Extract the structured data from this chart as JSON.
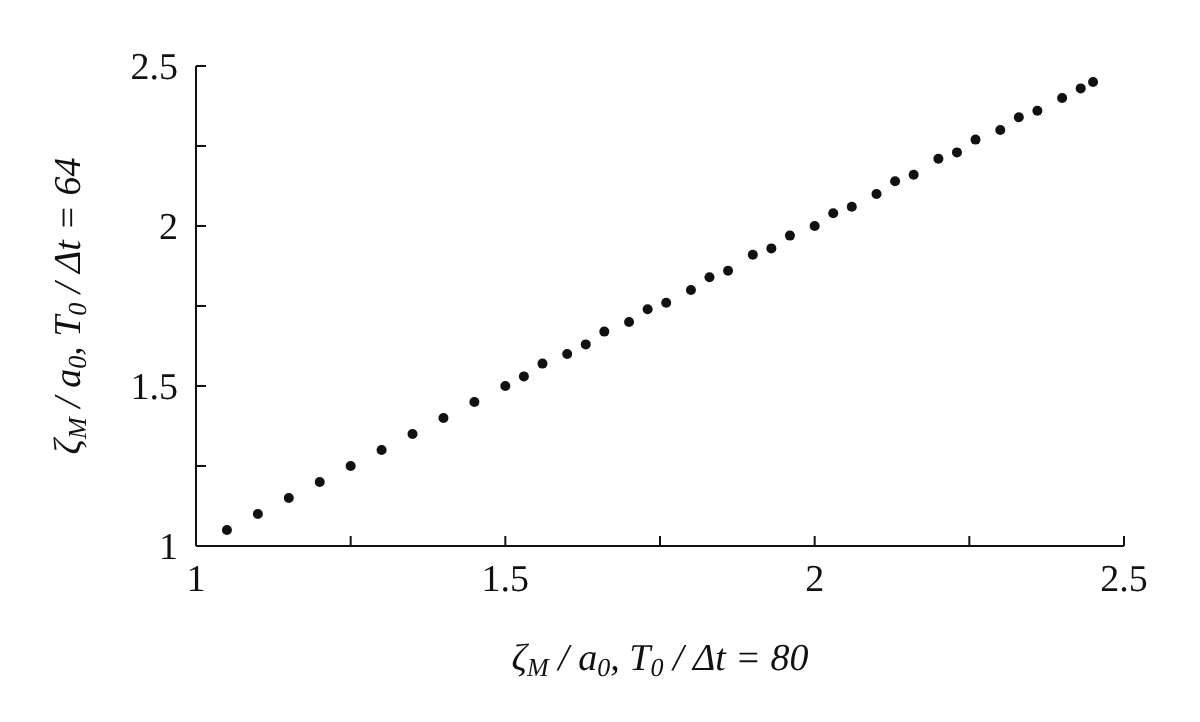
{
  "chart_data": {
    "type": "scatter",
    "xlabel": "ζ$_{M}$ / a$_{0}$, T$_{0}$ / Δt = 80",
    "ylabel": "ζ$_{M}$ / a$_{0}$, T$_{0}$ / Δt = 64",
    "xlim": [
      1,
      2.5
    ],
    "ylim": [
      1,
      2.5
    ],
    "xticks": [
      1,
      {
        "value": 1.25,
        "label": null
      },
      1.5,
      {
        "value": 1.75,
        "label": null
      },
      2,
      {
        "value": 2.25,
        "label": null
      },
      2.5
    ],
    "yticks": [
      1,
      {
        "value": 1.25,
        "label": null
      },
      1.5,
      {
        "value": 1.75,
        "label": null
      },
      2,
      {
        "value": 2.25,
        "label": null
      },
      2.5
    ],
    "grid": false,
    "legend": false,
    "marker": "circle",
    "series": [
      {
        "color": "#111111",
        "x": [
          1.05,
          1.1,
          1.15,
          1.2,
          1.25,
          1.3,
          1.35,
          1.4,
          1.45,
          1.5,
          1.53,
          1.56,
          1.6,
          1.63,
          1.66,
          1.7,
          1.73,
          1.76,
          1.8,
          1.83,
          1.86,
          1.9,
          1.93,
          1.96,
          2.0,
          2.03,
          2.06,
          2.1,
          2.13,
          2.16,
          2.2,
          2.23,
          2.26,
          2.3,
          2.33,
          2.36,
          2.4,
          2.43,
          2.45
        ],
        "values": [
          1.05,
          1.1,
          1.15,
          1.2,
          1.25,
          1.3,
          1.35,
          1.4,
          1.45,
          1.5,
          1.53,
          1.57,
          1.6,
          1.63,
          1.67,
          1.7,
          1.74,
          1.76,
          1.8,
          1.84,
          1.86,
          1.91,
          1.93,
          1.97,
          2.0,
          2.04,
          2.06,
          2.1,
          2.14,
          2.16,
          2.21,
          2.23,
          2.27,
          2.3,
          2.34,
          2.36,
          2.4,
          2.43,
          2.45
        ]
      }
    ]
  }
}
